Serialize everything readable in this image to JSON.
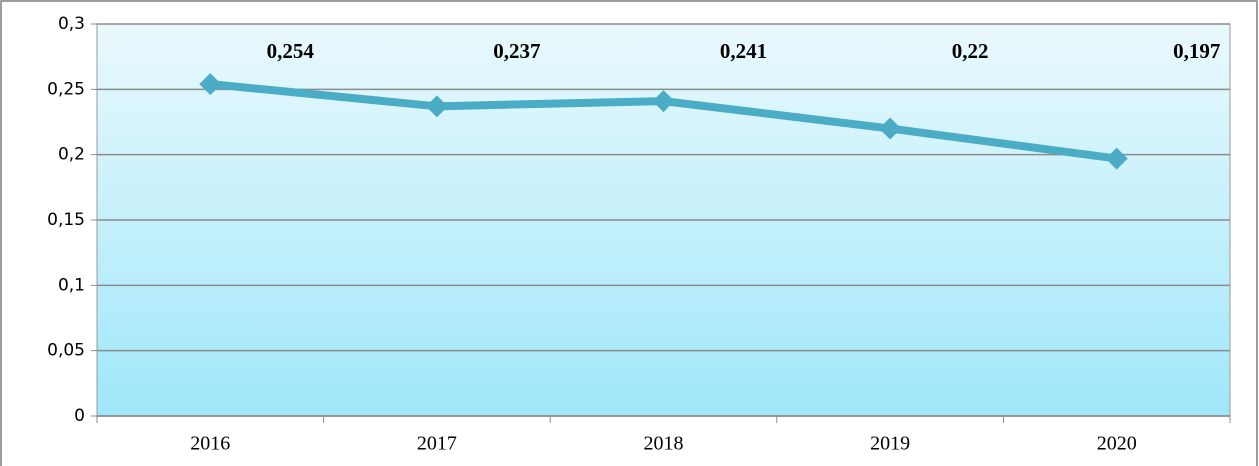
{
  "chart_data": {
    "type": "line",
    "categories": [
      "2016",
      "2017",
      "2018",
      "2019",
      "2020"
    ],
    "series": [
      {
        "name": "",
        "color": "#4bacc6",
        "values": [
          0.254,
          0.237,
          0.241,
          0.22,
          0.197
        ],
        "value_labels": [
          "0,254",
          "0,237",
          "0,241",
          "0,22",
          "0,197"
        ]
      }
    ],
    "ylim": [
      0,
      0.3
    ],
    "yticks": [
      0,
      {
        "value": 0.05,
        "label": "0,05"
      },
      {
        "value": 0.1,
        "label": "0,1"
      },
      {
        "value": 0.15,
        "label": "0,15"
      },
      {
        "value": 0.2,
        "label": "0,2"
      },
      {
        "value": 0.25,
        "label": "0,25"
      },
      {
        "value": 0.3,
        "label": "0,3"
      }
    ],
    "grid": true
  }
}
